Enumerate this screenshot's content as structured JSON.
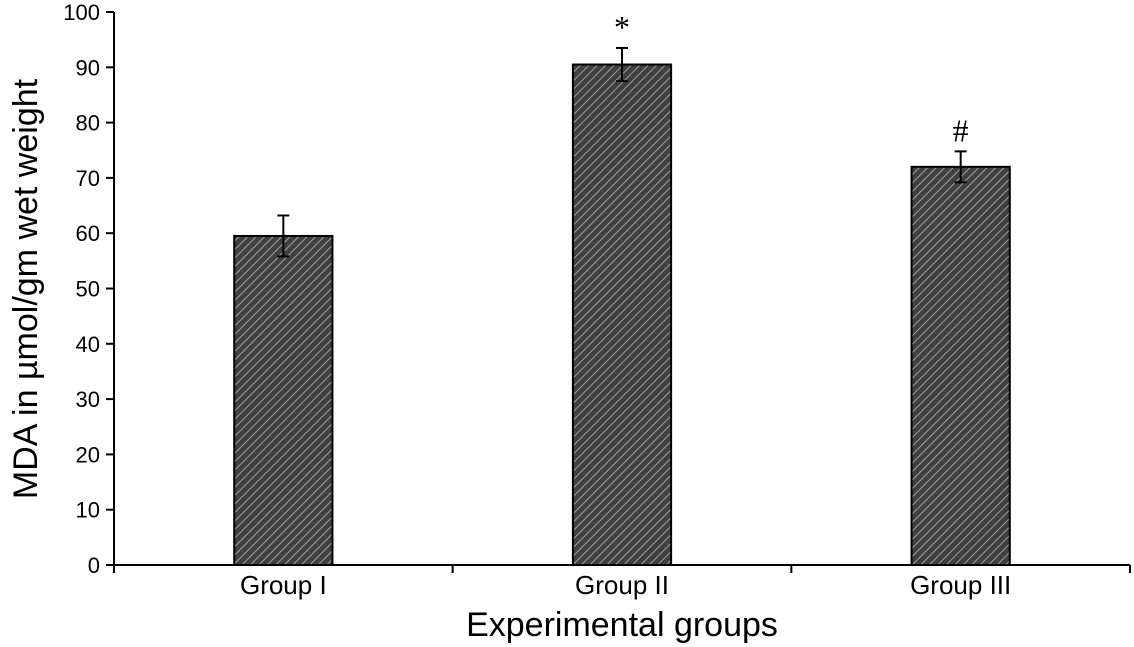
{
  "chart_data": {
    "type": "bar",
    "title": "",
    "xlabel": "Experimental groups",
    "ylabel": "MDA in µmol/gm wet weight",
    "ylim": [
      0,
      100
    ],
    "yticks": [
      0,
      10,
      20,
      30,
      40,
      50,
      60,
      70,
      80,
      90,
      100
    ],
    "categories": [
      "Group I",
      "Group II",
      "Group III"
    ],
    "values": [
      59.5,
      90.5,
      72.0
    ],
    "errors": [
      3.7,
      3.0,
      2.8
    ],
    "annotations": [
      "",
      "*",
      "#"
    ],
    "grid": false,
    "legend": "none",
    "bar_fill": "hatched",
    "colors": {
      "bar_fill": "#404040",
      "hatch": "#a0a0a0",
      "edge": "#000000",
      "axis": "#000000"
    }
  }
}
